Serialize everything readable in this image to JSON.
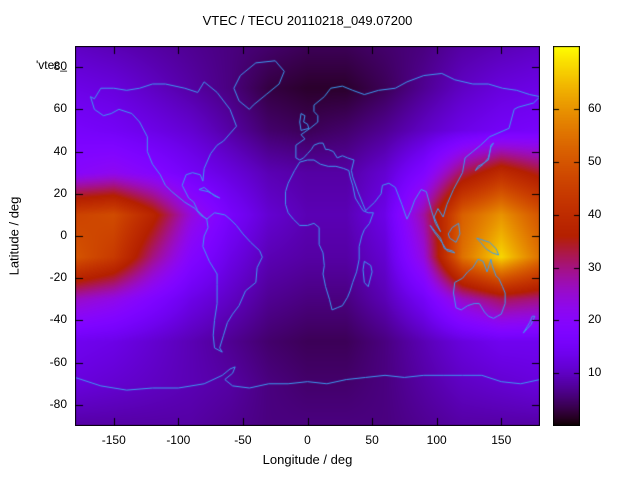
{
  "chart_data": {
    "type": "heatmap",
    "title": "VTEC / TECU 20110218_049.07200",
    "key_label": "'vtec_",
    "xlabel": "Longitude / deg",
    "ylabel": "Latitude / deg",
    "value_units": "TECU",
    "xlim": [
      -180,
      180
    ],
    "ylim": [
      -90,
      90
    ],
    "xticks": [
      -150,
      -100,
      -50,
      0,
      50,
      100,
      150
    ],
    "yticks": [
      -80,
      -60,
      -40,
      -20,
      0,
      20,
      40,
      60,
      80
    ],
    "colorbar": {
      "range": [
        0,
        72
      ],
      "ticks": [
        10,
        20,
        30,
        40,
        50,
        60
      ],
      "palette": "gnuplot-pm3d black-violet-orange-yellow"
    },
    "colors": {
      "coastline": "#3c9bf0",
      "axis": "#000000",
      "background": "#ffffff"
    },
    "grid": {
      "lon": [
        -180,
        -150,
        -120,
        -90,
        -60,
        -30,
        0,
        30,
        60,
        90,
        120,
        150,
        180
      ],
      "lat": [
        90,
        70,
        50,
        30,
        10,
        -10,
        -30,
        -50,
        -70,
        -90
      ],
      "values_tecu": [
        [
          10,
          9,
          8,
          7,
          6,
          5,
          4,
          4,
          5,
          6,
          8,
          9,
          10
        ],
        [
          13,
          12,
          10,
          8,
          6,
          3,
          2,
          2,
          4,
          7,
          10,
          12,
          13
        ],
        [
          16,
          15,
          13,
          11,
          8,
          5,
          4,
          5,
          7,
          10,
          13,
          15,
          16
        ],
        [
          20,
          22,
          19,
          15,
          12,
          9,
          8,
          8,
          11,
          18,
          32,
          40,
          34
        ],
        [
          46,
          48,
          38,
          24,
          16,
          11,
          9,
          9,
          13,
          28,
          52,
          60,
          50
        ],
        [
          50,
          44,
          30,
          19,
          13,
          9,
          8,
          8,
          11,
          24,
          55,
          68,
          55
        ],
        [
          26,
          23,
          18,
          13,
          10,
          7,
          6,
          6,
          9,
          15,
          26,
          32,
          30
        ],
        [
          14,
          13,
          11,
          9,
          7,
          5,
          4,
          4,
          6,
          9,
          12,
          14,
          14
        ],
        [
          12,
          11,
          10,
          9,
          8,
          6,
          5,
          5,
          6,
          8,
          10,
          11,
          12
        ],
        [
          8,
          8,
          8,
          8,
          7,
          6,
          6,
          6,
          6,
          7,
          8,
          8,
          8
        ]
      ]
    },
    "coastlines": {
      "north_america": [
        [
          -165,
          65
        ],
        [
          -160,
          70
        ],
        [
          -150,
          70
        ],
        [
          -140,
          69
        ],
        [
          -130,
          70
        ],
        [
          -120,
          72
        ],
        [
          -110,
          72
        ],
        [
          -95,
          70
        ],
        [
          -85,
          68
        ],
        [
          -80,
          73
        ],
        [
          -70,
          68
        ],
        [
          -60,
          60
        ],
        [
          -55,
          52
        ],
        [
          -65,
          45
        ],
        [
          -70,
          43
        ],
        [
          -75,
          39
        ],
        [
          -80,
          32
        ],
        [
          -81,
          26
        ],
        [
          -83,
          29
        ],
        [
          -89,
          30
        ],
        [
          -94,
          29
        ],
        [
          -97,
          24
        ],
        [
          -92,
          18
        ],
        [
          -88,
          16
        ],
        [
          -85,
          12
        ],
        [
          -80,
          9
        ],
        [
          -78,
          8
        ],
        [
          -83,
          10
        ],
        [
          -87,
          13
        ],
        [
          -95,
          16
        ],
        [
          -105,
          21
        ],
        [
          -110,
          24
        ],
        [
          -114,
          29
        ],
        [
          -120,
          34
        ],
        [
          -124,
          40
        ],
        [
          -124,
          47
        ],
        [
          -130,
          54
        ],
        [
          -136,
          58
        ],
        [
          -146,
          60
        ],
        [
          -152,
          58
        ],
        [
          -158,
          57
        ],
        [
          -165,
          60
        ],
        [
          -168,
          66
        ],
        [
          -165,
          65
        ]
      ],
      "south_america": [
        [
          -78,
          8
        ],
        [
          -72,
          11
        ],
        [
          -64,
          10
        ],
        [
          -60,
          8
        ],
        [
          -55,
          5
        ],
        [
          -50,
          1
        ],
        [
          -44,
          -3
        ],
        [
          -37,
          -7
        ],
        [
          -35,
          -10
        ],
        [
          -39,
          -15
        ],
        [
          -40,
          -22
        ],
        [
          -48,
          -26
        ],
        [
          -53,
          -33
        ],
        [
          -58,
          -37
        ],
        [
          -62,
          -41
        ],
        [
          -65,
          -47
        ],
        [
          -68,
          -53
        ],
        [
          -66,
          -55
        ],
        [
          -72,
          -53
        ],
        [
          -73,
          -47
        ],
        [
          -72,
          -40
        ],
        [
          -70,
          -32
        ],
        [
          -70,
          -23
        ],
        [
          -70,
          -18
        ],
        [
          -76,
          -12
        ],
        [
          -81,
          -5
        ],
        [
          -80,
          0
        ],
        [
          -77,
          4
        ],
        [
          -78,
          8
        ]
      ],
      "greenland": [
        [
          -45,
          60
        ],
        [
          -53,
          64
        ],
        [
          -57,
          70
        ],
        [
          -52,
          76
        ],
        [
          -40,
          82
        ],
        [
          -25,
          83
        ],
        [
          -18,
          78
        ],
        [
          -22,
          72
        ],
        [
          -32,
          67
        ],
        [
          -42,
          62
        ],
        [
          -45,
          60
        ]
      ],
      "eurasia": [
        [
          -9,
          37
        ],
        [
          -9,
          43
        ],
        [
          -2,
          46
        ],
        [
          -5,
          48
        ],
        [
          2,
          51
        ],
        [
          8,
          54
        ],
        [
          8,
          57
        ],
        [
          5,
          59
        ],
        [
          5,
          62
        ],
        [
          13,
          66
        ],
        [
          18,
          70
        ],
        [
          27,
          71
        ],
        [
          35,
          69
        ],
        [
          44,
          67
        ],
        [
          55,
          69
        ],
        [
          68,
          70
        ],
        [
          77,
          73
        ],
        [
          90,
          76
        ],
        [
          104,
          77
        ],
        [
          114,
          74
        ],
        [
          128,
          72
        ],
        [
          140,
          72
        ],
        [
          151,
          70
        ],
        [
          162,
          69
        ],
        [
          172,
          67
        ],
        [
          180,
          66
        ],
        [
          175,
          63
        ],
        [
          163,
          61
        ],
        [
          160,
          60
        ],
        [
          156,
          51
        ],
        [
          141,
          47
        ],
        [
          134,
          43
        ],
        [
          128,
          40
        ],
        [
          122,
          37
        ],
        [
          120,
          30
        ],
        [
          113,
          22
        ],
        [
          108,
          15
        ],
        [
          105,
          9
        ],
        [
          101,
          13
        ],
        [
          98,
          9
        ],
        [
          103,
          2
        ],
        [
          99,
          6
        ],
        [
          96,
          12
        ],
        [
          92,
          21
        ],
        [
          88,
          22
        ],
        [
          83,
          17
        ],
        [
          80,
          12
        ],
        [
          77,
          8
        ],
        [
          73,
          15
        ],
        [
          68,
          23
        ],
        [
          63,
          25
        ],
        [
          58,
          24
        ],
        [
          57,
          20
        ],
        [
          52,
          16
        ],
        [
          45,
          12
        ],
        [
          43,
          15
        ],
        [
          39,
          21
        ],
        [
          35,
          28
        ],
        [
          34,
          31
        ],
        [
          36,
          36
        ],
        [
          31,
          37
        ],
        [
          27,
          38
        ],
        [
          23,
          37
        ],
        [
          20,
          40
        ],
        [
          16,
          41
        ],
        [
          14,
          41
        ],
        [
          12,
          44
        ],
        [
          9,
          44
        ],
        [
          5,
          43
        ],
        [
          3,
          41
        ],
        [
          0,
          39
        ],
        [
          -3,
          37
        ],
        [
          -6,
          36
        ],
        [
          -9,
          37
        ]
      ],
      "africa": [
        [
          -6,
          35
        ],
        [
          -10,
          31
        ],
        [
          -15,
          25
        ],
        [
          -17,
          21
        ],
        [
          -17,
          15
        ],
        [
          -15,
          11
        ],
        [
          -11,
          8
        ],
        [
          -6,
          5
        ],
        [
          0,
          5
        ],
        [
          5,
          6
        ],
        [
          9,
          4
        ],
        [
          9,
          0
        ],
        [
          9,
          -4
        ],
        [
          12,
          -8
        ],
        [
          13,
          -14
        ],
        [
          12,
          -18
        ],
        [
          14,
          -24
        ],
        [
          17,
          -30
        ],
        [
          19,
          -35
        ],
        [
          23,
          -34
        ],
        [
          27,
          -33
        ],
        [
          31,
          -29
        ],
        [
          33,
          -26
        ],
        [
          35,
          -22
        ],
        [
          38,
          -17
        ],
        [
          40,
          -11
        ],
        [
          40,
          -5
        ],
        [
          42,
          0
        ],
        [
          44,
          3
        ],
        [
          48,
          6
        ],
        [
          51,
          11
        ],
        [
          47,
          11
        ],
        [
          43,
          12
        ],
        [
          40,
          15
        ],
        [
          37,
          18
        ],
        [
          35,
          24
        ],
        [
          33,
          28
        ],
        [
          32,
          31
        ],
        [
          28,
          32
        ],
        [
          22,
          33
        ],
        [
          16,
          33
        ],
        [
          10,
          34
        ],
        [
          5,
          36
        ],
        [
          0,
          36
        ],
        [
          -6,
          35
        ]
      ],
      "australia": [
        [
          114,
          -22
        ],
        [
          113,
          -27
        ],
        [
          115,
          -34
        ],
        [
          119,
          -35
        ],
        [
          124,
          -33
        ],
        [
          129,
          -32
        ],
        [
          133,
          -32
        ],
        [
          137,
          -36
        ],
        [
          140,
          -38
        ],
        [
          144,
          -39
        ],
        [
          147,
          -38
        ],
        [
          150,
          -37
        ],
        [
          153,
          -32
        ],
        [
          153,
          -27
        ],
        [
          151,
          -24
        ],
        [
          148,
          -20
        ],
        [
          146,
          -19
        ],
        [
          143,
          -14
        ],
        [
          142,
          -11
        ],
        [
          139,
          -17
        ],
        [
          136,
          -12
        ],
        [
          132,
          -11
        ],
        [
          128,
          -15
        ],
        [
          124,
          -17
        ],
        [
          120,
          -20
        ],
        [
          114,
          -22
        ]
      ],
      "antarctica": [
        [
          -180,
          -67
        ],
        [
          -160,
          -71
        ],
        [
          -140,
          -73
        ],
        [
          -120,
          -72
        ],
        [
          -100,
          -72
        ],
        [
          -80,
          -70
        ],
        [
          -66,
          -66
        ],
        [
          -60,
          -63
        ],
        [
          -56,
          -62
        ],
        [
          -58,
          -65
        ],
        [
          -64,
          -68
        ],
        [
          -58,
          -71
        ],
        [
          -45,
          -72
        ],
        [
          -30,
          -70
        ],
        [
          -15,
          -70
        ],
        [
          0,
          -69
        ],
        [
          15,
          -70
        ],
        [
          30,
          -68
        ],
        [
          45,
          -67
        ],
        [
          60,
          -66
        ],
        [
          75,
          -67
        ],
        [
          90,
          -66
        ],
        [
          105,
          -66
        ],
        [
          120,
          -66
        ],
        [
          135,
          -66
        ],
        [
          150,
          -69
        ],
        [
          165,
          -70
        ],
        [
          180,
          -68
        ]
      ],
      "uk": [
        [
          -5,
          50
        ],
        [
          -6,
          54
        ],
        [
          -5,
          58
        ],
        [
          -2,
          57
        ],
        [
          -3,
          54
        ],
        [
          0,
          53
        ],
        [
          1,
          51
        ],
        [
          -5,
          50
        ]
      ],
      "japan": [
        [
          130,
          31
        ],
        [
          132,
          33
        ],
        [
          135,
          34
        ],
        [
          140,
          36
        ],
        [
          141,
          39
        ],
        [
          142,
          43
        ],
        [
          144,
          44
        ],
        [
          142,
          42
        ],
        [
          140,
          37
        ],
        [
          136,
          34
        ],
        [
          132,
          32
        ],
        [
          130,
          31
        ]
      ],
      "madagascar": [
        [
          44,
          -12
        ],
        [
          49,
          -14
        ],
        [
          50,
          -17
        ],
        [
          47,
          -24
        ],
        [
          44,
          -22
        ],
        [
          43,
          -16
        ],
        [
          44,
          -12
        ]
      ],
      "new_zealand": [
        [
          167,
          -46
        ],
        [
          170,
          -43
        ],
        [
          172,
          -41
        ],
        [
          174,
          -38
        ],
        [
          176,
          -38
        ],
        [
          173,
          -42
        ],
        [
          170,
          -44
        ],
        [
          167,
          -46
        ]
      ],
      "new_guinea": [
        [
          131,
          -1
        ],
        [
          136,
          -2
        ],
        [
          141,
          -3
        ],
        [
          146,
          -6
        ],
        [
          148,
          -9
        ],
        [
          143,
          -8
        ],
        [
          138,
          -6
        ],
        [
          134,
          -3
        ],
        [
          131,
          -1
        ]
      ],
      "borneo": [
        [
          109,
          1
        ],
        [
          112,
          4
        ],
        [
          117,
          6
        ],
        [
          118,
          1
        ],
        [
          115,
          -3
        ],
        [
          110,
          -1
        ],
        [
          109,
          1
        ]
      ],
      "sumatra_java": [
        [
          95,
          5
        ],
        [
          99,
          2
        ],
        [
          103,
          -1
        ],
        [
          106,
          -6
        ],
        [
          112,
          -7
        ],
        [
          114,
          -8
        ],
        [
          108,
          -7
        ],
        [
          104,
          -3
        ],
        [
          98,
          2
        ],
        [
          95,
          5
        ]
      ],
      "caribbean": [
        [
          -84,
          22
        ],
        [
          -77,
          21
        ],
        [
          -74,
          20
        ],
        [
          -68,
          18
        ],
        [
          -72,
          19
        ],
        [
          -80,
          23
        ],
        [
          -84,
          22
        ]
      ]
    }
  }
}
